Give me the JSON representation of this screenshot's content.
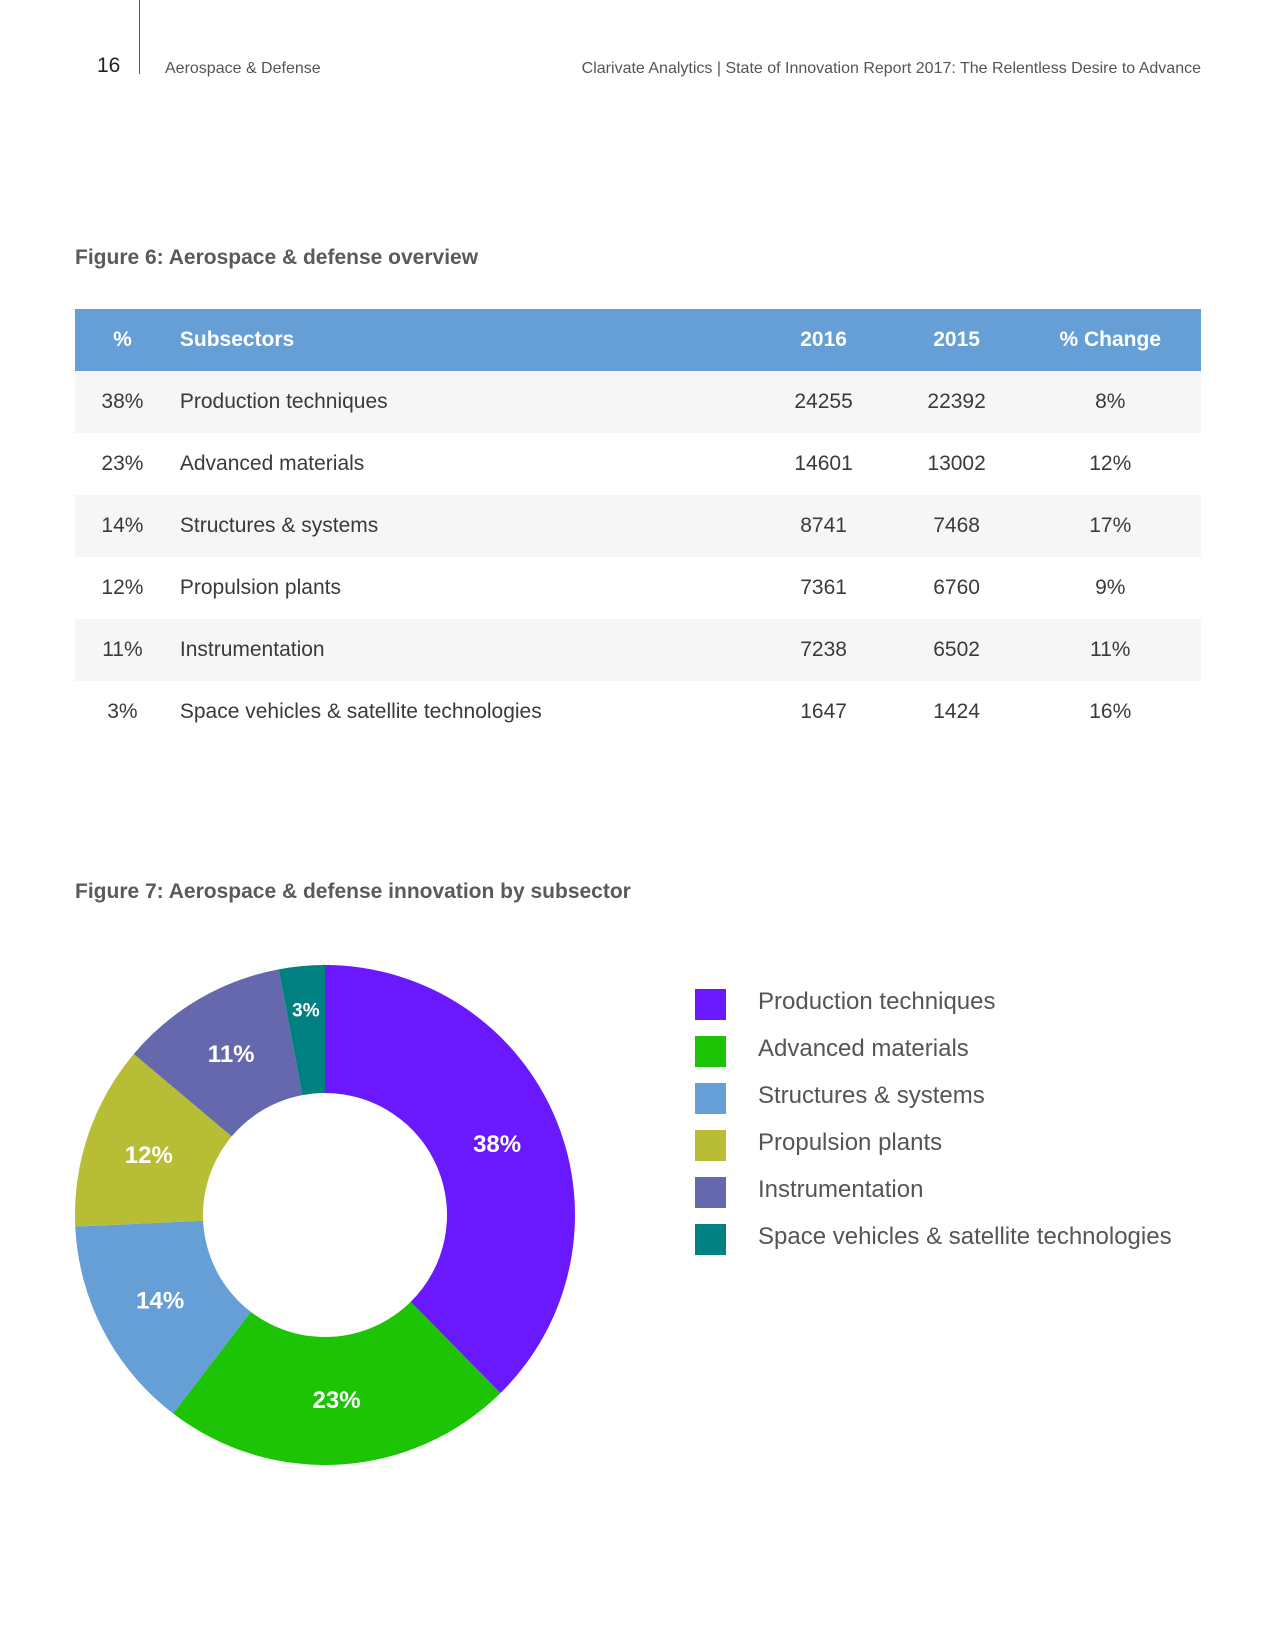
{
  "header": {
    "page_number": "16",
    "section": "Aerospace & Defense",
    "report_title": "Clarivate Analytics | State of Innovation Report 2017: The Relentless Desire to Advance"
  },
  "figure6": {
    "title": "Figure 6: Aerospace & defense overview",
    "columns": [
      "%",
      "Subsectors",
      "2016",
      "2015",
      "% Change"
    ],
    "rows": [
      {
        "pct": "38%",
        "subsector": "Production techniques",
        "y2016": "24255",
        "y2015": "22392",
        "change": "8%"
      },
      {
        "pct": "23%",
        "subsector": "Advanced materials",
        "y2016": "14601",
        "y2015": "13002",
        "change": "12%"
      },
      {
        "pct": "14%",
        "subsector": "Structures & systems",
        "y2016": "8741",
        "y2015": "7468",
        "change": "17%"
      },
      {
        "pct": "12%",
        "subsector": "Propulsion plants",
        "y2016": "7361",
        "y2015": "6760",
        "change": "9%"
      },
      {
        "pct": "11%",
        "subsector": "Instrumentation",
        "y2016": "7238",
        "y2015": "6502",
        "change": "11%"
      },
      {
        "pct": "3%",
        "subsector": "Space vehicles & satellite technologies",
        "y2016": "1647",
        "y2015": "1424",
        "change": "16%"
      }
    ]
  },
  "figure7": {
    "title": "Figure 7: Aerospace & defense innovation by subsector"
  },
  "colors": {
    "header_bg": "#669fd6",
    "row_alt": "#f6f6f6"
  },
  "chart_data": [
    {
      "type": "table",
      "title": "Figure 6: Aerospace & defense overview",
      "columns": [
        "%",
        "Subsectors",
        "2016",
        "2015",
        "% Change"
      ],
      "rows": [
        [
          "38%",
          "Production techniques",
          24255,
          22392,
          "8%"
        ],
        [
          "23%",
          "Advanced materials",
          14601,
          13002,
          "12%"
        ],
        [
          "14%",
          "Structures & systems",
          8741,
          7468,
          "17%"
        ],
        [
          "12%",
          "Propulsion plants",
          7361,
          6760,
          "9%"
        ],
        [
          "11%",
          "Instrumentation",
          7238,
          6502,
          "11%"
        ],
        [
          "3%",
          "Space vehicles & satellite technologies",
          1647,
          1424,
          "16%"
        ]
      ]
    },
    {
      "type": "pie",
      "variant": "donut",
      "title": "Figure 7: Aerospace & defense innovation by subsector",
      "categories": [
        "Production techniques",
        "Advanced materials",
        "Structures & systems",
        "Propulsion plants",
        "Instrumentation",
        "Space vehicles & satellite technologies"
      ],
      "values": [
        38,
        23,
        14,
        12,
        11,
        3
      ],
      "labels": [
        "38%",
        "23%",
        "14%",
        "12%",
        "11%",
        "3%"
      ],
      "colors": [
        "#6a19ff",
        "#1cc405",
        "#669fd6",
        "#b7bd34",
        "#6668ad",
        "#008080"
      ],
      "legend_position": "right"
    }
  ]
}
